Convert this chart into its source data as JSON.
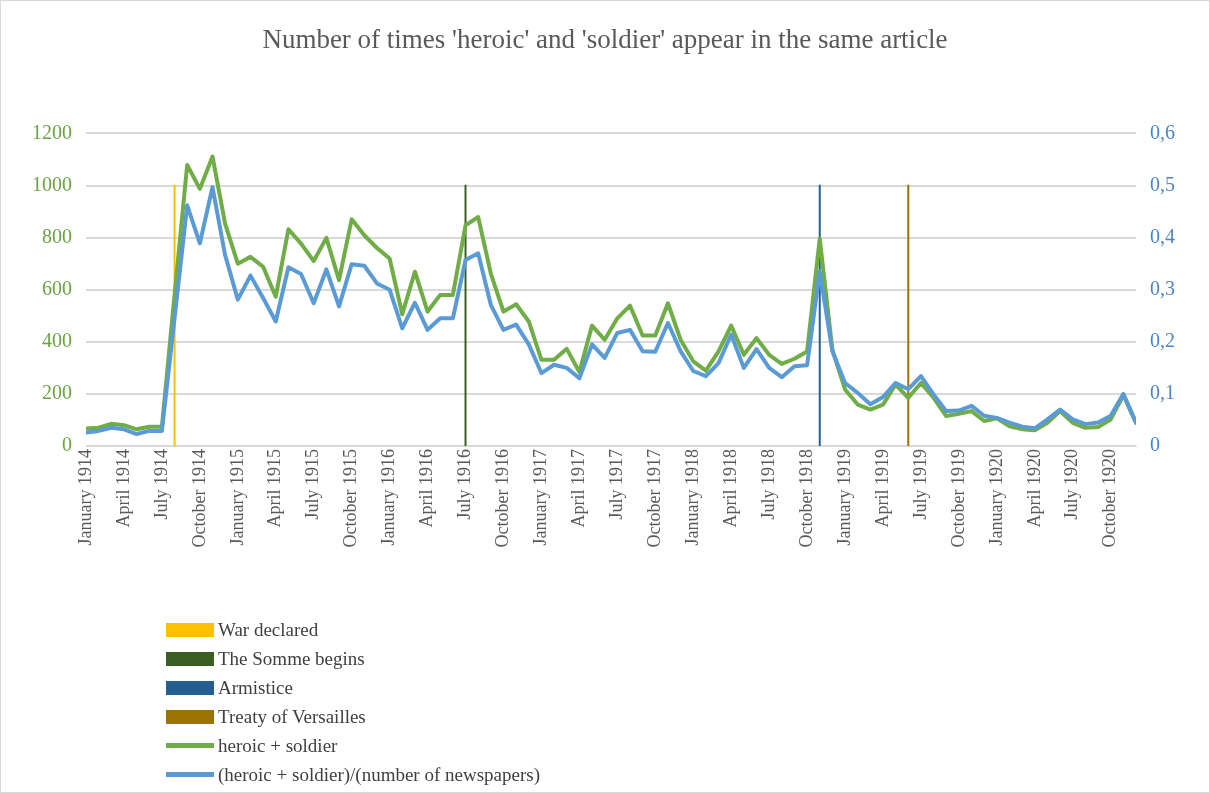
{
  "chart_data": {
    "type": "line",
    "title": "Number of times 'heroic' and 'soldier' appear in the same article",
    "xlim": [
      "1914-01",
      "1920-12"
    ],
    "x": [
      "1914-01",
      "1914-02",
      "1914-03",
      "1914-04",
      "1914-05",
      "1914-06",
      "1914-07",
      "1914-08",
      "1914-09",
      "1914-10",
      "1914-11",
      "1914-12",
      "1915-01",
      "1915-02",
      "1915-03",
      "1915-04",
      "1915-05",
      "1915-06",
      "1915-07",
      "1915-08",
      "1915-09",
      "1915-10",
      "1915-11",
      "1915-12",
      "1916-01",
      "1916-02",
      "1916-03",
      "1916-04",
      "1916-05",
      "1916-06",
      "1916-07",
      "1916-08",
      "1916-09",
      "1916-10",
      "1916-11",
      "1916-12",
      "1917-01",
      "1917-02",
      "1917-03",
      "1917-04",
      "1917-05",
      "1917-06",
      "1917-07",
      "1917-08",
      "1917-09",
      "1917-10",
      "1917-11",
      "1917-12",
      "1918-01",
      "1918-02",
      "1918-03",
      "1918-04",
      "1918-05",
      "1918-06",
      "1918-07",
      "1918-08",
      "1918-09",
      "1918-10",
      "1918-11",
      "1918-12",
      "1919-01",
      "1919-02",
      "1919-03",
      "1919-04",
      "1919-05",
      "1919-06",
      "1919-07",
      "1919-08",
      "1919-09",
      "1919-10",
      "1919-11",
      "1919-12",
      "1920-01",
      "1920-02",
      "1920-03",
      "1920-04",
      "1920-05",
      "1920-06",
      "1920-07",
      "1920-08",
      "1920-09",
      "1920-10",
      "1920-11",
      "1920-12"
    ],
    "xticks": [
      {
        "value": "1914-01",
        "label": "January 1914"
      },
      {
        "value": "1914-04",
        "label": "April 1914"
      },
      {
        "value": "1914-07",
        "label": "July 1914"
      },
      {
        "value": "1914-10",
        "label": "October 1914"
      },
      {
        "value": "1915-01",
        "label": "January 1915"
      },
      {
        "value": "1915-04",
        "label": "April 1915"
      },
      {
        "value": "1915-07",
        "label": "July 1915"
      },
      {
        "value": "1915-10",
        "label": "October 1915"
      },
      {
        "value": "1916-01",
        "label": "January 1916"
      },
      {
        "value": "1916-04",
        "label": "April 1916"
      },
      {
        "value": "1916-07",
        "label": "July 1916"
      },
      {
        "value": "1916-10",
        "label": "October 1916"
      },
      {
        "value": "1917-01",
        "label": "January 1917"
      },
      {
        "value": "1917-04",
        "label": "April 1917"
      },
      {
        "value": "1917-07",
        "label": "July 1917"
      },
      {
        "value": "1917-10",
        "label": "October 1917"
      },
      {
        "value": "1918-01",
        "label": "January 1918"
      },
      {
        "value": "1918-04",
        "label": "April 1918"
      },
      {
        "value": "1918-07",
        "label": "July 1918"
      },
      {
        "value": "1918-10",
        "label": "October 1918"
      },
      {
        "value": "1919-01",
        "label": "January 1919"
      },
      {
        "value": "1919-04",
        "label": "April 1919"
      },
      {
        "value": "1919-07",
        "label": "July 1919"
      },
      {
        "value": "1919-10",
        "label": "October 1919"
      },
      {
        "value": "1920-01",
        "label": "January 1920"
      },
      {
        "value": "1920-04",
        "label": "April 1920"
      },
      {
        "value": "1920-07",
        "label": "July 1920"
      },
      {
        "value": "1920-10",
        "label": "October 1920"
      }
    ],
    "ylim": [
      0,
      1200
    ],
    "yticks": [
      0,
      200,
      400,
      600,
      800,
      1000,
      1200
    ],
    "y2lim": [
      0,
      0.6
    ],
    "y2ticks": [
      0,
      {
        "value": 0.1,
        "label": "0,1"
      },
      {
        "value": 0.2,
        "label": "0,2"
      },
      {
        "value": 0.3,
        "label": "0,3"
      },
      {
        "value": 0.4,
        "label": "0,4"
      },
      {
        "value": 0.5,
        "label": "0,5"
      },
      {
        "value": 0.6,
        "label": "0,6"
      }
    ],
    "grid": "y",
    "legend": "bottom",
    "marker": "none",
    "line_style": "solid",
    "series": [
      {
        "name": "War declared",
        "color": "#ffc000",
        "x": [
          "1914-08",
          "1914-08"
        ],
        "values": [
          0,
          1000
        ]
      },
      {
        "name": "The Somme begins",
        "color": "#3b5e24",
        "x": [
          "1916-07",
          "1916-07"
        ],
        "values": [
          0,
          1000
        ]
      },
      {
        "name": "Armistice",
        "color": "#255e91",
        "x": [
          "1918-11",
          "1918-11"
        ],
        "values": [
          0,
          1000
        ]
      },
      {
        "name": "Treaty of Versailles",
        "color": "#9c7200",
        "x": [
          "1919-06",
          "1919-06"
        ],
        "values": [
          0,
          1000
        ]
      },
      {
        "name": "heroic + soldier",
        "color": "#70ad47",
        "values": [
          67,
          70,
          85,
          80,
          64,
          74,
          74,
          580,
          1079,
          987,
          1111,
          853,
          700,
          726,
          688,
          573,
          832,
          777,
          710,
          799,
          637,
          870,
          809,
          760,
          720,
          506,
          669,
          516,
          580,
          580,
          847,
          879,
          662,
          516,
          544,
          478,
          331,
          331,
          373,
          284,
          462,
          408,
          490,
          539,
          424,
          424,
          548,
          408,
          325,
          289,
          363,
          462,
          350,
          414,
          350,
          315,
          335,
          363,
          796,
          369,
          217,
          159,
          140,
          159,
          236,
          185,
          242,
          185,
          115,
          124,
          134,
          96,
          106,
          76,
          64,
          60,
          89,
          134,
          89,
          70,
          73,
          102,
          195,
          89
        ]
      },
      {
        "name": "(heroic + soldier)/(number of newspapers)",
        "color": "#5b9bd5",
        "axis": "y2",
        "values": [
          0.026,
          0.029,
          0.035,
          0.032,
          0.023,
          0.029,
          0.029,
          0.245,
          0.462,
          0.389,
          0.497,
          0.366,
          0.281,
          0.327,
          0.284,
          0.239,
          0.343,
          0.33,
          0.274,
          0.339,
          0.268,
          0.349,
          0.346,
          0.312,
          0.3,
          0.226,
          0.275,
          0.223,
          0.245,
          0.245,
          0.357,
          0.37,
          0.271,
          0.223,
          0.233,
          0.195,
          0.14,
          0.156,
          0.15,
          0.13,
          0.195,
          0.169,
          0.217,
          0.223,
          0.182,
          0.181,
          0.236,
          0.182,
          0.144,
          0.134,
          0.159,
          0.214,
          0.15,
          0.186,
          0.15,
          0.132,
          0.153,
          0.155,
          0.335,
          0.182,
          0.121,
          0.102,
          0.08,
          0.094,
          0.121,
          0.109,
          0.134,
          0.099,
          0.067,
          0.068,
          0.077,
          0.058,
          0.054,
          0.045,
          0.037,
          0.034,
          0.051,
          0.07,
          0.051,
          0.042,
          0.045,
          0.058,
          0.1,
          0.045
        ]
      }
    ]
  }
}
